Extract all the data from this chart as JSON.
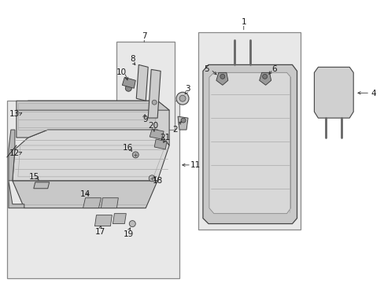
{
  "bg_color": "#ffffff",
  "fig_width": 4.89,
  "fig_height": 3.6,
  "dpi": 100,
  "text_color": "#1a1a1a",
  "font_size": 7.5,
  "box_color": "#e8e8e8",
  "box_edge": "#888888",
  "line_color": "#333333",
  "part_fill": "#d4d4d4",
  "part_edge": "#444444"
}
